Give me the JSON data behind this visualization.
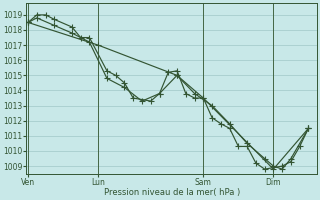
{
  "background_color": "#c8e8e8",
  "grid_color": "#a0c8c8",
  "line_color": "#335533",
  "marker_color": "#335533",
  "xlabel": "Pression niveau de la mer( hPa )",
  "ylim": [
    1008.5,
    1019.8
  ],
  "yticks": [
    1009,
    1010,
    1011,
    1012,
    1013,
    1014,
    1015,
    1016,
    1017,
    1018,
    1019
  ],
  "xtick_labels": [
    "Ven",
    "Lun",
    "Sam",
    "Dim"
  ],
  "xtick_positions": [
    0,
    4,
    10,
    14
  ],
  "xlim": [
    -0.1,
    16.5
  ],
  "vline_color": "#446644",
  "series1_x": [
    0,
    0.5,
    1.0,
    1.5,
    2.5,
    3.0,
    3.5,
    4.5,
    5.0,
    5.5,
    6.0,
    7.0,
    7.5,
    8.0,
    8.5,
    9.0,
    9.5,
    10.0,
    10.5,
    11.0,
    11.5,
    12.0,
    12.5,
    13.0,
    13.5,
    14.5,
    15.0,
    15.5,
    16.0
  ],
  "series1_y": [
    1018.5,
    1019.0,
    1019.0,
    1018.7,
    1018.2,
    1017.5,
    1017.5,
    1015.3,
    1015.0,
    1014.5,
    1013.5,
    1013.3,
    1013.8,
    1015.2,
    1015.3,
    1013.8,
    1013.5,
    1013.5,
    1012.2,
    1011.8,
    1011.5,
    1010.3,
    1010.3,
    1009.2,
    1008.8,
    1009.0,
    1009.3,
    1010.3,
    1011.5
  ],
  "series2_x": [
    0,
    0.5,
    1.5,
    2.5,
    3.5,
    4.5,
    5.5,
    6.5,
    7.5,
    8.5,
    9.5,
    10.5,
    11.5,
    12.5,
    13.5,
    14.0,
    14.5,
    15.0,
    16.0
  ],
  "series2_y": [
    1018.5,
    1018.8,
    1018.3,
    1017.8,
    1017.2,
    1014.8,
    1014.2,
    1013.3,
    1013.8,
    1015.0,
    1013.8,
    1013.0,
    1011.8,
    1010.5,
    1009.5,
    1009.0,
    1008.8,
    1009.5,
    1011.5
  ],
  "series3_x": [
    0,
    4,
    8.5,
    10,
    14,
    16.0
  ],
  "series3_y": [
    1018.5,
    1017.0,
    1015.0,
    1013.5,
    1008.8,
    1011.5
  ]
}
